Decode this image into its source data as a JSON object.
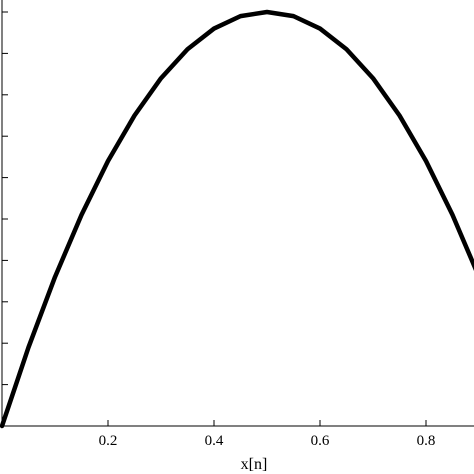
{
  "chart_data": {
    "type": "line",
    "title": "",
    "xlabel": "x[n]",
    "ylabel": "",
    "xlim": [
      0,
      0.9
    ],
    "ylim": [
      0,
      1.0
    ],
    "x_ticks": [
      0.2,
      0.4,
      0.6,
      0.8
    ],
    "x_tick_labels": [
      "0.2",
      "0.4",
      "0.6",
      "0.8"
    ],
    "y_tick_count": 10,
    "grid": false,
    "series": [
      {
        "color": "#000000",
        "x": [
          0,
          0.05,
          0.1,
          0.15,
          0.2,
          0.25,
          0.3,
          0.35,
          0.4,
          0.45,
          0.5,
          0.55,
          0.6,
          0.65,
          0.7,
          0.75,
          0.8,
          0.85,
          0.9
        ],
        "y": [
          0,
          0.19,
          0.36,
          0.51,
          0.64,
          0.75,
          0.84,
          0.91,
          0.96,
          0.99,
          1.0,
          0.99,
          0.96,
          0.91,
          0.84,
          0.75,
          0.64,
          0.51,
          0.36
        ]
      }
    ]
  }
}
